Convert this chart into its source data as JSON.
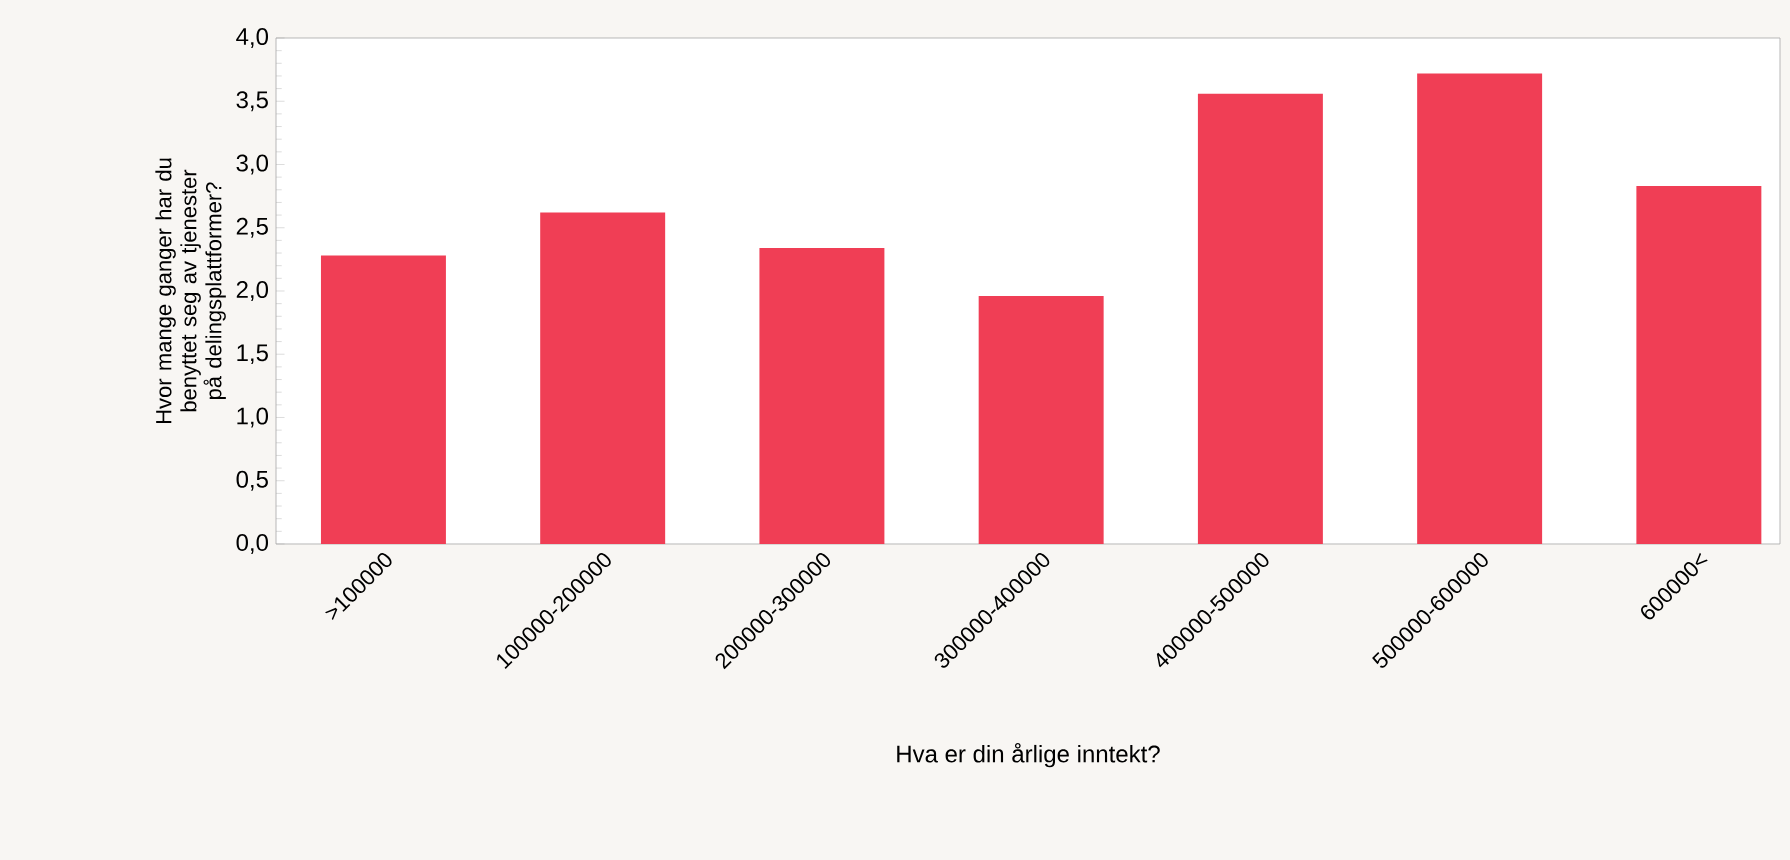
{
  "chart_data": {
    "type": "bar",
    "xlabel": "Hva er din årlige inntekt?",
    "ylabel": "Hvor mange ganger har du benyttet seg av tjenester på delingsplattformer?",
    "categories": [
      ">100000",
      "100000-200000",
      "200000-300000",
      "300000-400000",
      "400000-500000",
      "500000-600000",
      "600000<"
    ],
    "values": [
      2.28,
      2.62,
      2.34,
      1.96,
      3.56,
      3.72,
      2.83
    ],
    "color": "#f03e55",
    "ylim": [
      0,
      4
    ],
    "yticks": [
      {
        "value": 0,
        "label": "0,0"
      },
      {
        "value": 0.5,
        "label": "0,5"
      },
      {
        "value": 1,
        "label": "1,0"
      },
      {
        "value": 1.5,
        "label": "1,5"
      },
      {
        "value": 2,
        "label": "2,0"
      },
      {
        "value": 2.5,
        "label": "2,5"
      },
      {
        "value": 3,
        "label": "3,0"
      },
      {
        "value": 3.5,
        "label": "3,5"
      },
      {
        "value": 4,
        "label": "4,0"
      }
    ],
    "grid": false
  }
}
